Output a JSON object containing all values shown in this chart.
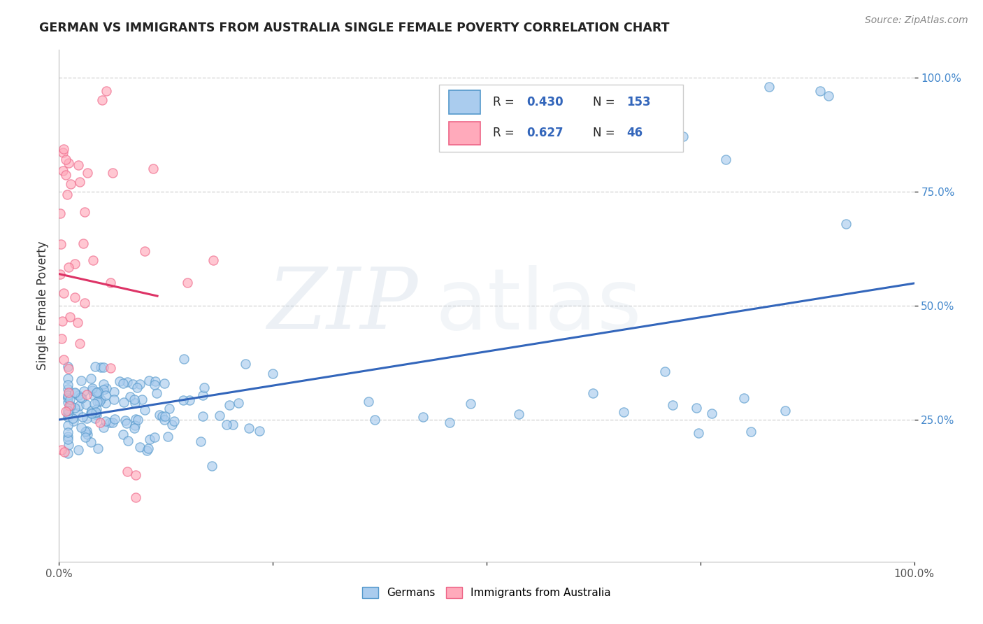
{
  "title": "GERMAN VS IMMIGRANTS FROM AUSTRALIA SINGLE FEMALE POVERTY CORRELATION CHART",
  "source": "Source: ZipAtlas.com",
  "ylabel": "Single Female Poverty",
  "watermark_zip": "ZIP",
  "watermark_atlas": "atlas",
  "series": [
    {
      "name": "Germans",
      "face_color": "#aaccee",
      "edge_color": "#5599cc",
      "trend_color": "#3366bb",
      "R": 0.43,
      "N": 153
    },
    {
      "name": "Immigrants from Australia",
      "face_color": "#ffaabb",
      "edge_color": "#ee6688",
      "trend_color": "#dd3366",
      "R": 0.627,
      "N": 46
    }
  ],
  "legend_R_color": "#3366bb",
  "legend_N_color": "#3366bb",
  "xlim": [
    0.0,
    1.0
  ],
  "ylim": [
    -0.06,
    1.06
  ],
  "xticks": [
    0.0,
    0.25,
    0.5,
    0.75,
    1.0
  ],
  "yticks": [
    0.25,
    0.5,
    0.75,
    1.0
  ],
  "xticklabels": [
    "0.0%",
    "",
    "",
    "",
    "100.0%"
  ],
  "yticklabels": [
    "25.0%",
    "50.0%",
    "75.0%",
    "100.0%"
  ],
  "grid_color": "#cccccc",
  "background_color": "#ffffff",
  "title_color": "#222222",
  "axis_color": "#bbbbbb"
}
